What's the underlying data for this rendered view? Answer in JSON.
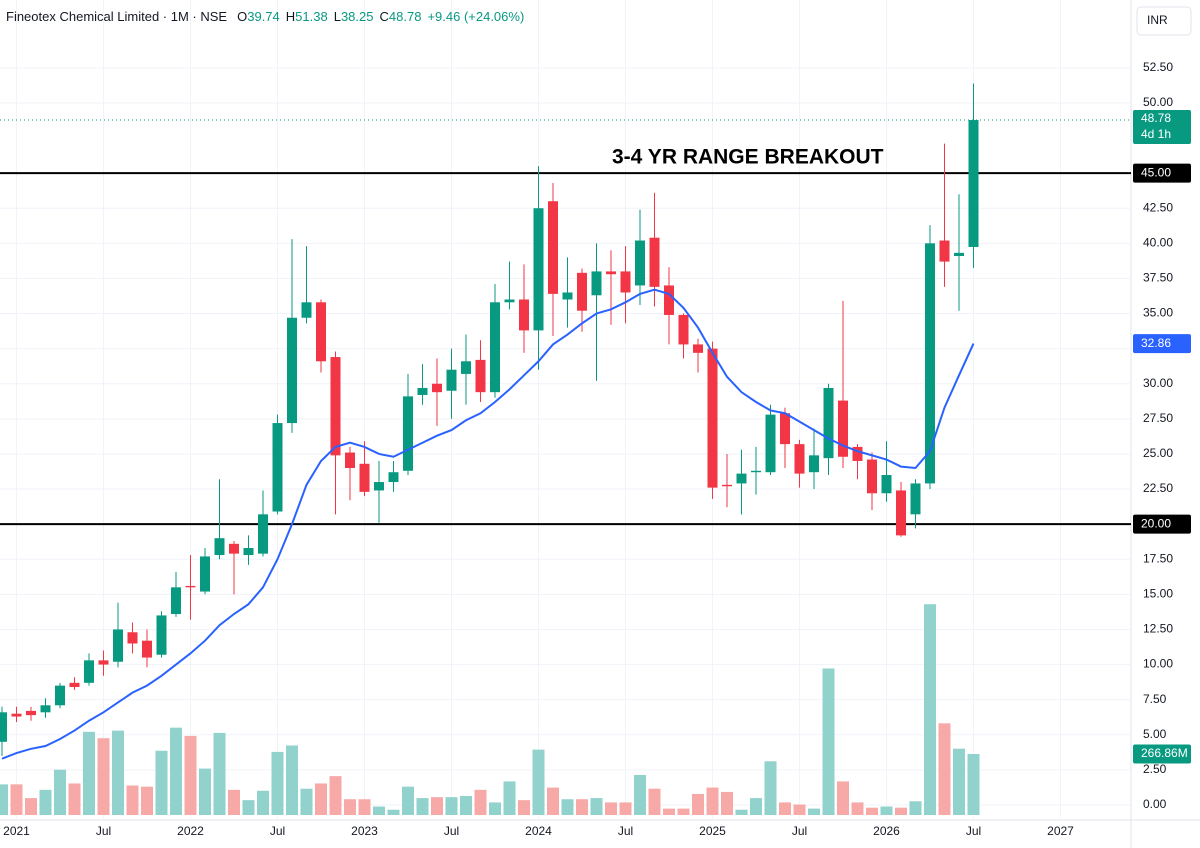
{
  "chart_data": {
    "type": "candlestick",
    "legend": {
      "symbol": "Fineotex Chemical Limited",
      "interval": "1M",
      "exchange": "NSE",
      "items": [
        {
          "key": "O",
          "value": 39.74
        },
        {
          "key": "H",
          "value": 51.38
        },
        {
          "key": "L",
          "value": 38.25
        },
        {
          "key": "C",
          "value": 48.78
        }
      ],
      "change": "+9.46 (+24.06%)"
    },
    "currency": "INR",
    "annotation": "3-4 YR RANGE BREAKOUT",
    "x": [
      "2020-12",
      "2021-01",
      "2021-02",
      "2021-03",
      "2021-04",
      "2021-05",
      "2021-06",
      "2021-07",
      "2021-08",
      "2021-09",
      "2021-10",
      "2021-11",
      "2021-12",
      "2022-01",
      "2022-02",
      "2022-03",
      "2022-04",
      "2022-05",
      "2022-06",
      "2022-07",
      "2022-08",
      "2022-09",
      "2022-10",
      "2022-11",
      "2022-12",
      "2023-01",
      "2023-02",
      "2023-03",
      "2023-04",
      "2023-05",
      "2023-06",
      "2023-07",
      "2023-08",
      "2023-09",
      "2023-10",
      "2023-11",
      "2023-12",
      "2024-01",
      "2024-02",
      "2024-03",
      "2024-04",
      "2024-05",
      "2024-06",
      "2024-07",
      "2024-08",
      "2024-09",
      "2024-10",
      "2024-11",
      "2024-12",
      "2025-01",
      "2025-02",
      "2025-03",
      "2025-04",
      "2025-05",
      "2025-06",
      "2025-07",
      "2025-08",
      "2025-09",
      "2025-10",
      "2025-11",
      "2025-12",
      "2026-01",
      "2026-02",
      "2026-03",
      "2026-04",
      "2026-05",
      "2026-06",
      "2026-07"
    ],
    "open": [
      4.5,
      6.5,
      6.7,
      6.6,
      7.1,
      8.7,
      8.7,
      10.3,
      10.2,
      12.3,
      11.7,
      10.7,
      13.6,
      15.6,
      15.2,
      17.8,
      18.6,
      17.8,
      17.9,
      20.9,
      27.2,
      34.7,
      35.8,
      31.9,
      25.1,
      24.3,
      22.4,
      23.0,
      23.8,
      29.2,
      30.0,
      29.5,
      30.7,
      31.7,
      29.4,
      35.8,
      36.0,
      33.8,
      43.0,
      36.0,
      37.9,
      36.3,
      38.0,
      38.0,
      37.0,
      40.4,
      37.0,
      34.9,
      32.8,
      32.5,
      22.8,
      22.9,
      23.7,
      23.7,
      27.9,
      25.7,
      23.7,
      24.7,
      28.8,
      25.5,
      24.6,
      22.2,
      22.4,
      20.7,
      22.9,
      40.2,
      39.1,
      39.74
    ],
    "high": [
      7.0,
      7.0,
      7.0,
      7.6,
      8.7,
      9.1,
      10.8,
      11.0,
      14.4,
      13.0,
      12.5,
      13.8,
      16.6,
      17.8,
      18.3,
      23.2,
      18.8,
      19.2,
      22.4,
      27.8,
      40.3,
      39.8,
      36.0,
      32.3,
      25.5,
      25.9,
      24.5,
      24.5,
      30.7,
      31.4,
      31.8,
      32.5,
      33.5,
      33.1,
      37.1,
      38.7,
      38.5,
      45.5,
      44.3,
      39.0,
      38.2,
      40.0,
      39.5,
      39.8,
      42.4,
      43.6,
      38.3,
      35.0,
      33.2,
      33.0,
      25.0,
      25.3,
      25.5,
      28.5,
      28.3,
      26.0,
      26.8,
      30.0,
      35.9,
      25.7,
      25.1,
      25.9,
      23.0,
      23.2,
      41.3,
      47.1,
      43.5,
      51.38
    ],
    "low": [
      3.5,
      5.9,
      6.0,
      6.2,
      6.9,
      8.2,
      8.5,
      9.2,
      9.8,
      10.8,
      9.8,
      10.5,
      13.4,
      13.2,
      15.0,
      17.5,
      15.0,
      17.1,
      17.7,
      20.7,
      26.5,
      34.3,
      30.8,
      20.7,
      21.7,
      22.0,
      20.1,
      22.3,
      23.5,
      28.5,
      27.0,
      27.5,
      28.5,
      28.7,
      29.0,
      35.3,
      32.2,
      31.0,
      33.4,
      34.0,
      33.7,
      30.2,
      34.2,
      34.3,
      35.6,
      35.5,
      32.8,
      31.8,
      30.8,
      21.8,
      21.2,
      20.7,
      22.1,
      23.5,
      24.0,
      22.6,
      22.5,
      23.5,
      24.0,
      23.2,
      21.0,
      21.6,
      19.1,
      19.7,
      22.5,
      36.9,
      35.2,
      38.25
    ],
    "close": [
      6.6,
      6.3,
      6.4,
      7.1,
      8.5,
      8.4,
      10.3,
      10.0,
      12.5,
      11.5,
      10.5,
      13.5,
      15.5,
      15.5,
      17.7,
      19.0,
      17.9,
      18.3,
      20.7,
      27.2,
      34.7,
      35.8,
      31.6,
      24.9,
      24.0,
      22.3,
      23.0,
      23.7,
      29.1,
      29.7,
      29.4,
      31.0,
      31.6,
      29.4,
      35.8,
      36.0,
      33.8,
      42.5,
      36.4,
      36.5,
      35.2,
      38.0,
      37.8,
      36.5,
      40.2,
      36.9,
      34.9,
      32.8,
      32.2,
      22.6,
      22.7,
      23.6,
      23.8,
      27.8,
      25.7,
      23.6,
      24.9,
      29.7,
      24.8,
      24.5,
      22.2,
      23.5,
      19.2,
      22.9,
      40.0,
      38.7,
      39.32,
      48.78
    ],
    "volume": [
      134,
      134,
      74,
      110,
      198,
      138,
      364,
      336,
      369,
      129,
      124,
      281,
      382,
      346,
      203,
      359,
      110,
      65,
      106,
      276,
      304,
      115,
      138,
      170,
      69,
      69,
      37,
      23,
      124,
      74,
      78,
      78,
      83,
      110,
      55,
      147,
      65,
      286,
      120,
      69,
      69,
      74,
      55,
      55,
      175,
      115,
      28,
      28,
      92,
      120,
      101,
      23,
      74,
      235,
      55,
      46,
      28,
      641,
      147,
      55,
      32,
      37,
      32,
      60,
      922,
      401,
      290,
      266.86
    ],
    "volume_ylim": [
      0,
      3565
    ],
    "last_volume_label": "266.86M",
    "ma": {
      "color": "#2962ff",
      "values": [
        3.3,
        3.7,
        4.0,
        4.2,
        4.7,
        5.3,
        6.0,
        6.6,
        7.3,
        8.0,
        8.5,
        9.2,
        10.0,
        10.8,
        11.7,
        12.8,
        13.6,
        14.3,
        15.5,
        17.5,
        20.0,
        22.8,
        24.5,
        25.5,
        25.8,
        25.5,
        25.0,
        24.8,
        25.3,
        25.8,
        26.3,
        26.7,
        27.4,
        27.9,
        28.7,
        29.6,
        30.6,
        31.6,
        32.8,
        33.5,
        34.3,
        35.0,
        35.3,
        35.8,
        36.4,
        36.7,
        36.4,
        35.4,
        34.0,
        32.2,
        30.5,
        29.4,
        28.7,
        28.1,
        27.9,
        27.3,
        26.7,
        26.1,
        25.6,
        25.2,
        24.9,
        24.6,
        24.1,
        24.0,
        25.2,
        28.3,
        30.6,
        32.86
      ],
      "last_label": "32.86"
    },
    "up_color": "#089981",
    "down_color": "#f23645",
    "volume_up_color": "#92d2cc",
    "volume_down_color": "#f7a9a7",
    "last_price_label": "48.78",
    "countdown": "4d 1h",
    "hlines": [
      {
        "value": 45,
        "label": "45.00"
      },
      {
        "value": 20,
        "label": "20.00"
      }
    ],
    "ylim": [
      -1.07,
      57.33
    ],
    "yticks": [
      {
        "value": 0,
        "label": "0.00"
      },
      {
        "value": 2.5,
        "label": "2.50"
      },
      {
        "value": 5,
        "label": "5.00"
      },
      {
        "value": 7.5,
        "label": "7.50"
      },
      {
        "value": 10,
        "label": "10.00"
      },
      {
        "value": 12.5,
        "label": "12.50"
      },
      {
        "value": 15,
        "label": "15.00"
      },
      {
        "value": 17.5,
        "label": "17.50"
      },
      {
        "value": 22.5,
        "label": "22.50"
      },
      {
        "value": 25,
        "label": "25.00"
      },
      {
        "value": 27.5,
        "label": "27.50"
      },
      {
        "value": 30,
        "label": "30.00"
      },
      {
        "value": 32.5,
        "label": "32.50"
      },
      {
        "value": 35,
        "label": "35.00"
      },
      {
        "value": 37.5,
        "label": "37.50"
      },
      {
        "value": 40,
        "label": "40.00"
      },
      {
        "value": 42.5,
        "label": "42.50"
      },
      {
        "value": 50,
        "label": "50.00"
      },
      {
        "value": 52.5,
        "label": "52.50"
      }
    ],
    "xticks": [
      {
        "value": "2021-01",
        "label": "2021"
      },
      {
        "value": "2021-07",
        "label": "Jul"
      },
      {
        "value": "2022-01",
        "label": "2022"
      },
      {
        "value": "2022-07",
        "label": "Jul"
      },
      {
        "value": "2023-01",
        "label": "2023"
      },
      {
        "value": "2023-07",
        "label": "Jul"
      },
      {
        "value": "2024-01",
        "label": "2024"
      },
      {
        "value": "2024-07",
        "label": "Jul"
      },
      {
        "value": "2025-01",
        "label": "2025"
      },
      {
        "value": "2025-07",
        "label": "Jul"
      },
      {
        "value": "2026-01",
        "label": "2026"
      },
      {
        "value": "2026-07",
        "label": "Jul"
      },
      {
        "value": "2027-01",
        "label": "2027"
      }
    ],
    "grid": true
  }
}
